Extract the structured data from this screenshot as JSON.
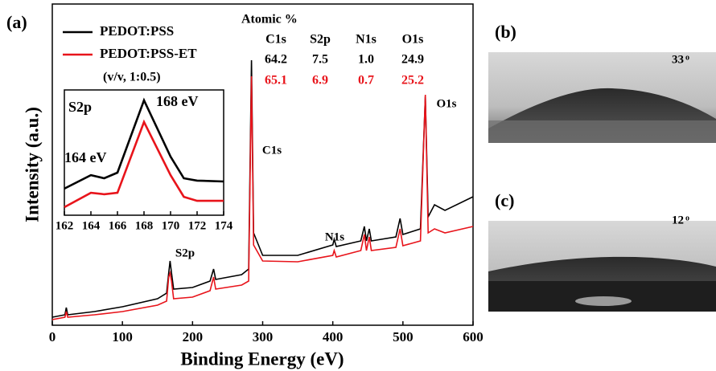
{
  "panel_label": "(a)",
  "chart_data": [
    {
      "type": "line",
      "xlabel": "Binding Energy (eV)",
      "ylabel": "Intensity (a.u.)",
      "xlim": [
        0,
        600
      ],
      "xticks": [
        0,
        100,
        200,
        300,
        400,
        500,
        600
      ],
      "ylim": [
        0,
        100
      ],
      "legend_note": "(v/v, 1:0.5)",
      "annotations": [
        "S2p",
        "C1s",
        "N1s",
        "O1s"
      ],
      "x": [
        0,
        18,
        20,
        22,
        60,
        100,
        150,
        163,
        166,
        168,
        170,
        173,
        200,
        225,
        230,
        233,
        270,
        280,
        284,
        287,
        300,
        350,
        400,
        402,
        405,
        440,
        445,
        448,
        452,
        455,
        490,
        496,
        500,
        525,
        532,
        536,
        545,
        560,
        600
      ],
      "series": [
        {
          "name": "PEDOT:PSS",
          "color": "#000000",
          "values": [
            2.5,
            3.25,
            5.5,
            3.25,
            4.25,
            5.75,
            8.25,
            10,
            16.25,
            20,
            16.25,
            11.25,
            11.75,
            13.75,
            17.5,
            14.25,
            15.75,
            17.5,
            82.5,
            28.75,
            21.75,
            21.75,
            25,
            26.75,
            24.5,
            26.25,
            30.75,
            26.25,
            30,
            26.25,
            27.5,
            33.25,
            28.25,
            30,
            71.25,
            33.75,
            37.5,
            35.75,
            40
          ]
        },
        {
          "name": "PEDOT:PSS-ET",
          "color": "#e8141b",
          "values": [
            1.75,
            2.5,
            4.25,
            2.5,
            3.25,
            4.25,
            6.25,
            7.5,
            15,
            16.25,
            13.75,
            8.25,
            8.75,
            10.75,
            15,
            11.25,
            12.5,
            13.75,
            77.5,
            25,
            20,
            19.75,
            21.75,
            23.25,
            21.25,
            23.25,
            28.25,
            23.25,
            27.5,
            23.25,
            24.25,
            30,
            24.75,
            26.25,
            71.75,
            28.75,
            30,
            28.75,
            30.75
          ]
        }
      ]
    },
    {
      "type": "line",
      "title": "S2p",
      "annotations": [
        "168 eV",
        "164 eV"
      ],
      "xlim": [
        162,
        174
      ],
      "xticks": [
        162,
        164,
        166,
        168,
        170,
        172,
        174
      ],
      "ylim": [
        0,
        100
      ],
      "x": [
        162,
        164,
        165,
        166,
        168,
        170,
        171,
        172,
        174
      ],
      "series": [
        {
          "name": "PEDOT:PSS",
          "color": "#000000",
          "values": [
            21.2,
            32,
            29.5,
            34,
            91.7,
            46.8,
            29.5,
            27.6,
            26.9
          ]
        },
        {
          "name": "PEDOT:PSS-ET",
          "color": "#e8141b",
          "values": [
            6.4,
            17.9,
            16.7,
            17.9,
            74.4,
            32,
            14.7,
            11.5,
            11.5
          ]
        }
      ]
    }
  ],
  "atomic_table": {
    "title": "Atomic %",
    "columns": [
      "C1s",
      "S2p",
      "N1s",
      "O1s"
    ],
    "rows": [
      [
        "64.2",
        "7.5",
        "1.0",
        "24.9"
      ],
      [
        "65.1",
        "6.9",
        "0.7",
        "25.2"
      ]
    ]
  },
  "panels": [
    {
      "label": "(b)",
      "angle": "33",
      "unit": "o"
    },
    {
      "label": "(c)",
      "angle": "12",
      "unit": "o"
    }
  ]
}
